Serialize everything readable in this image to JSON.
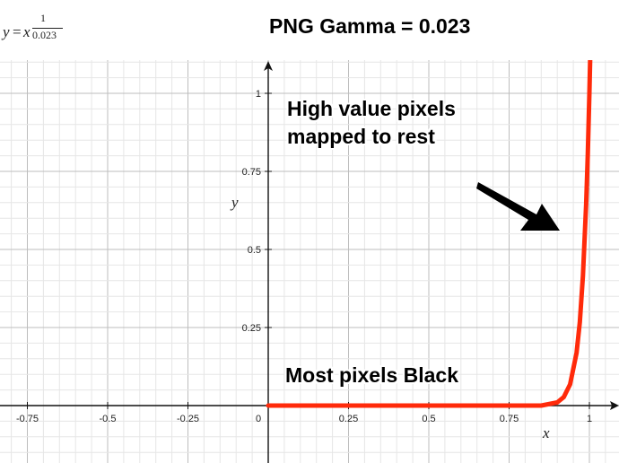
{
  "formula": {
    "lhs": "y",
    "eq": "=",
    "base": "x",
    "exp_numerator": "1",
    "exp_denominator": "0.023"
  },
  "chart_data": {
    "type": "line",
    "title": "PNG Gamma = 0.023",
    "xlabel": "x",
    "ylabel": "y",
    "xlim": [
      -0.85,
      1.09
    ],
    "ylim": [
      -0.2,
      1.15
    ],
    "grid": true,
    "x_ticks": [
      "-0.75",
      "-0.5",
      "-0.25",
      "0",
      "0.25",
      "0.5",
      "0.75",
      "1"
    ],
    "y_ticks": [
      "0.25",
      "0.5",
      "0.75",
      "1"
    ],
    "series": [
      {
        "color": "#ff2a0a",
        "x": [
          0,
          0.25,
          0.5,
          0.75,
          0.85,
          0.9,
          0.92,
          0.94,
          0.96,
          0.97,
          0.98,
          0.99,
          0.995,
          1.0
        ],
        "y": [
          0,
          0,
          0,
          0,
          0,
          0.01,
          0.027,
          0.068,
          0.169,
          0.266,
          0.416,
          0.646,
          0.804,
          1.0
        ]
      }
    ],
    "annotations": [
      {
        "text": "High value pixels\nmapped to rest",
        "line1": "High value pixels",
        "line2": "mapped to rest"
      },
      {
        "text": "Most pixels Black"
      }
    ]
  },
  "colors": {
    "grid_minor": "#e6e6e6",
    "grid_major": "#bdbdbd",
    "axis": "#111111",
    "curve": "#ff2a0a"
  }
}
